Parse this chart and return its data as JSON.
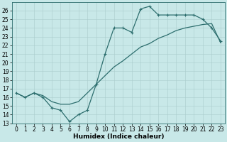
{
  "xlabel": "Humidex (Indice chaleur)",
  "bg_color": "#c8e8e8",
  "line_color": "#2d6e6e",
  "x": [
    0,
    1,
    2,
    3,
    4,
    5,
    6,
    7,
    8,
    9,
    10,
    11,
    12,
    13,
    14,
    15,
    16,
    17,
    18,
    19,
    20,
    21,
    22,
    23
  ],
  "line1": [
    16.5,
    16.0,
    16.5,
    16.0,
    14.8,
    14.5,
    13.2,
    14.0,
    14.5,
    17.5,
    21.0,
    24.0,
    24.0,
    23.5,
    26.2,
    26.5,
    25.5,
    25.5,
    25.5,
    25.5,
    25.5,
    25.0,
    24.0,
    22.5
  ],
  "line2": [
    16.5,
    16.0,
    16.5,
    16.2,
    15.5,
    15.2,
    15.2,
    15.5,
    16.5,
    17.5,
    18.5,
    19.5,
    20.2,
    21.0,
    21.8,
    22.2,
    22.8,
    23.2,
    23.7,
    24.0,
    24.2,
    24.4,
    24.5,
    22.3
  ],
  "ylim": [
    13,
    27
  ],
  "xlim": [
    -0.5,
    23.5
  ],
  "yticks": [
    13,
    14,
    15,
    16,
    17,
    18,
    19,
    20,
    21,
    22,
    23,
    24,
    25,
    26
  ],
  "xticks": [
    0,
    1,
    2,
    3,
    4,
    5,
    6,
    7,
    8,
    9,
    10,
    11,
    12,
    13,
    14,
    15,
    16,
    17,
    18,
    19,
    20,
    21,
    22,
    23
  ],
  "marker": "+",
  "markersize": 3,
  "linewidth": 0.9,
  "tick_fontsize": 5.5,
  "xlabel_fontsize": 6.5
}
